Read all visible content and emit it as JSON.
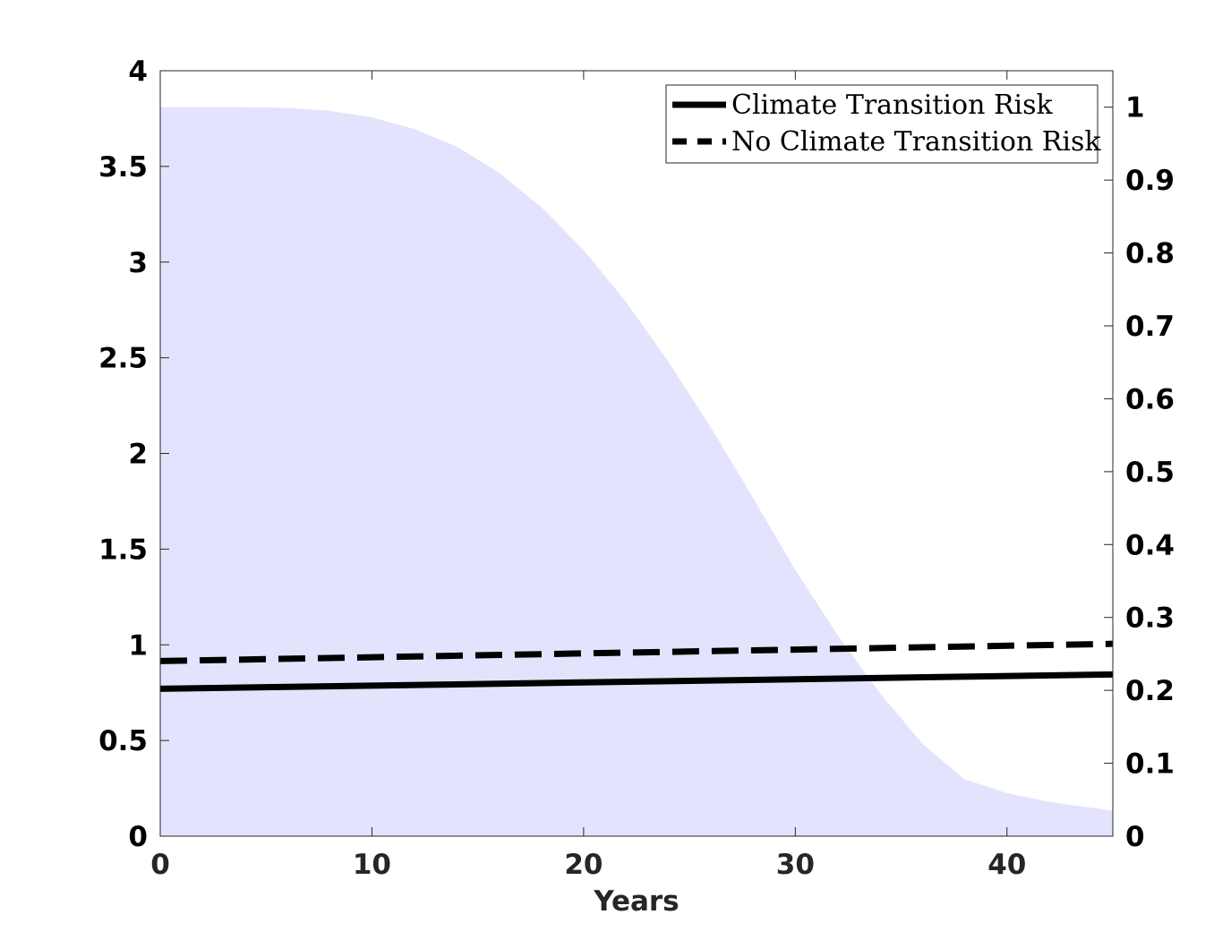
{
  "chart_data": {
    "type": "line",
    "xlabel": "Years",
    "ylabel": "",
    "ylabel_right": "",
    "xlim": [
      0,
      45
    ],
    "ylim": [
      0,
      4
    ],
    "ylim_right": [
      0,
      1.05
    ],
    "x_ticks": [
      0,
      10,
      20,
      30,
      40
    ],
    "y_ticks": [
      0,
      0.5,
      1,
      1.5,
      2,
      2.5,
      3,
      3.5,
      4
    ],
    "y_tick_labels": [
      "0",
      "0.5",
      "1",
      "1.5",
      "2",
      "2.5",
      "3",
      "3.5",
      "4"
    ],
    "y_right_ticks": [
      0,
      0.1,
      0.2,
      0.3,
      0.4,
      0.5,
      0.6,
      0.7,
      0.8,
      0.9,
      1
    ],
    "y_right_tick_labels": [
      "0",
      "0.1",
      "0.2",
      "0.3",
      "0.4",
      "0.5",
      "0.6",
      "0.7",
      "0.8",
      "0.9",
      "1"
    ],
    "grid": false,
    "legend_position": "top-right",
    "series": [
      {
        "name": "Climate Transition Risk",
        "axis": "left",
        "style": "solid",
        "color": "#000000",
        "x": [
          0,
          45
        ],
        "y": [
          0.77,
          0.845
        ]
      },
      {
        "name": "No Climate Transition Risk",
        "axis": "left",
        "style": "dashed",
        "color": "#000000",
        "x": [
          0,
          45
        ],
        "y": [
          0.915,
          1.005
        ]
      }
    ],
    "shaded_area": {
      "axis": "right",
      "color": "#e3e3fd",
      "x": [
        0,
        2,
        4,
        6,
        8,
        10,
        12,
        14,
        16,
        18,
        20,
        22,
        24,
        26,
        28,
        30,
        32,
        34,
        36,
        38,
        40,
        42,
        44,
        45
      ],
      "y": [
        1.0,
        1.0,
        1.0,
        0.999,
        0.995,
        0.986,
        0.97,
        0.946,
        0.91,
        0.863,
        0.804,
        0.733,
        0.651,
        0.561,
        0.464,
        0.365,
        0.276,
        0.196,
        0.127,
        0.078,
        0.059,
        0.047,
        0.039,
        0.035
      ]
    }
  }
}
